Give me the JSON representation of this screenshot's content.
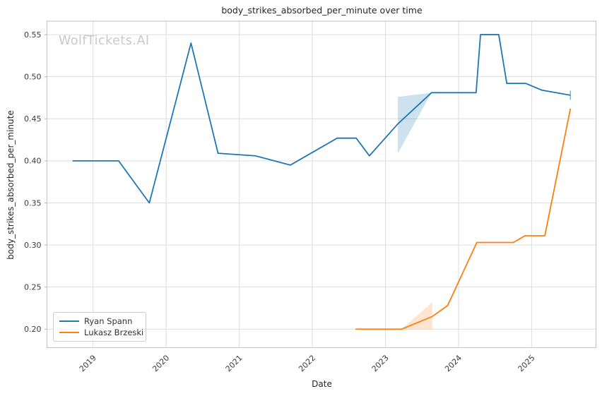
{
  "title": "body_strikes_absorbed_per_minute over time",
  "watermark": "WolfTickets.AI",
  "colors": {
    "series_blue": "#1f77b4",
    "series_orange": "#ff7f0e",
    "grid": "#dedede",
    "spine": "#c9c9c9",
    "tick_label": "#3a3a3a",
    "title_text": "#262626",
    "watermark_text": "#c9c9c9"
  },
  "chart_data": {
    "type": "line",
    "title": "body_strikes_absorbed_per_minute over time",
    "xlabel": "Date",
    "ylabel": "body_strikes_absorbed_per_minute",
    "x_unit": "decimal_year",
    "xlim": [
      2018.37,
      2025.88
    ],
    "ylim": [
      0.178,
      0.566
    ],
    "x_ticks": [
      2019,
      2020,
      2021,
      2022,
      2023,
      2024,
      2025
    ],
    "y_ticks": [
      0.2,
      0.25,
      0.3,
      0.35,
      0.4,
      0.45,
      0.5,
      0.55
    ],
    "grid": true,
    "legend_position": "lower-left",
    "series": [
      {
        "name": "Ryan Spann",
        "color": "#1f77b4",
        "points": [
          [
            2018.72,
            0.4
          ],
          [
            2019.35,
            0.4
          ],
          [
            2019.77,
            0.35
          ],
          [
            2020.34,
            0.54
          ],
          [
            2020.71,
            0.409
          ],
          [
            2021.22,
            0.406
          ],
          [
            2021.7,
            0.395
          ],
          [
            2022.34,
            0.427
          ],
          [
            2022.6,
            0.427
          ],
          [
            2022.78,
            0.406
          ],
          [
            2023.17,
            0.444
          ],
          [
            2023.63,
            0.481
          ],
          [
            2024.24,
            0.481
          ],
          [
            2024.3,
            0.55
          ],
          [
            2024.55,
            0.55
          ],
          [
            2024.66,
            0.492
          ],
          [
            2024.92,
            0.492
          ],
          [
            2025.14,
            0.484
          ],
          [
            2025.53,
            0.478
          ]
        ],
        "band": [
          [
            2023.17,
            0.409
          ],
          [
            2023.17,
            0.476
          ],
          [
            2023.63,
            0.481
          ]
        ],
        "band_opacity": 0.22,
        "end_cap": {
          "x": 2025.53,
          "low": 0.4725,
          "high": 0.4835
        }
      },
      {
        "name": "Lukasz Brzeski",
        "color": "#ff7f0e",
        "points": [
          [
            2022.59,
            0.2
          ],
          [
            2023.22,
            0.2
          ],
          [
            2023.64,
            0.215
          ],
          [
            2023.85,
            0.228
          ],
          [
            2024.25,
            0.303
          ],
          [
            2024.75,
            0.303
          ],
          [
            2024.91,
            0.311
          ],
          [
            2025.18,
            0.311
          ],
          [
            2025.53,
            0.462
          ]
        ],
        "band": [
          [
            2023.22,
            0.2
          ],
          [
            2023.64,
            0.232
          ],
          [
            2023.64,
            0.2
          ]
        ],
        "band_opacity": 0.2,
        "end_cap": null
      }
    ]
  }
}
